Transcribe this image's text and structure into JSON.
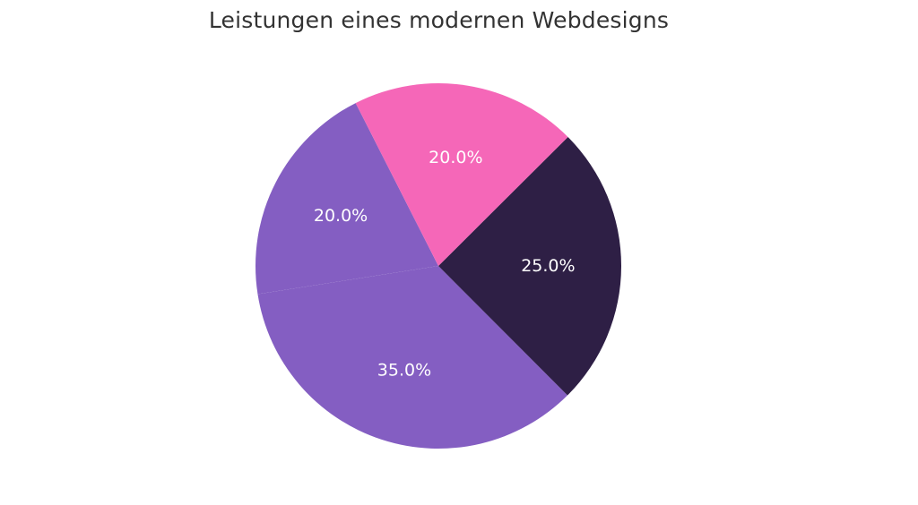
{
  "chart_data": {
    "type": "pie",
    "title": "Leistungen eines modernen Webdesigns",
    "start_angle_deg": 116.9,
    "direction": "counterclockwise",
    "slices": [
      {
        "value": 20.0,
        "label": "20.0%",
        "color": "#845EC2"
      },
      {
        "value": 35.0,
        "label": "35.0%",
        "color": "#845EC2"
      },
      {
        "value": 25.0,
        "label": "25.0%",
        "color": "#2E1F45"
      },
      {
        "value": 20.0,
        "label": "20.0%",
        "color": "#F567B8"
      }
    ]
  }
}
